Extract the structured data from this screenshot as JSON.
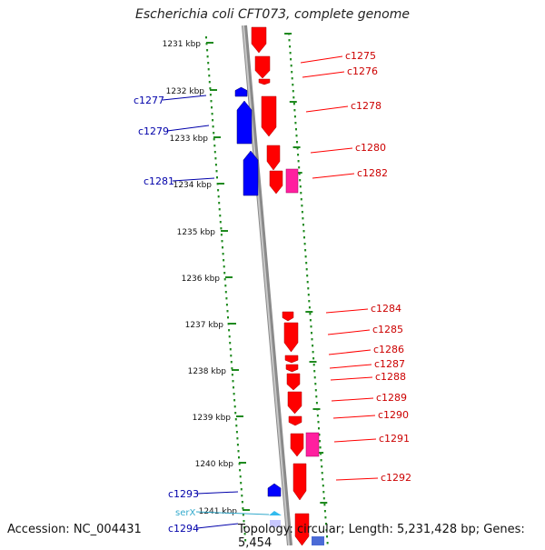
{
  "title": "Escherichia coli CFT073, complete genome",
  "accession": "Accession: NC_004431",
  "summary": "Topology: circular; Length: 5,231,428 bp; Genes: 5,454",
  "colors": {
    "backbone": "#8a8a8a",
    "dots": "#1f8a1f",
    "forward_gene": "#ff0000",
    "reverse_gene": "#0000ff",
    "pseudo_gene": "#ff1f9f",
    "trna": "#33bbee",
    "label_forward": "#cc0000",
    "label_reverse": "#0000aa",
    "label_trna": "#33aacc"
  },
  "ticks": [
    "1231 kbp",
    "1232 kbp",
    "1233 kbp",
    "1234 kbp",
    "1235 kbp",
    "1236 kbp",
    "1237 kbp",
    "1238 kbp",
    "1239 kbp",
    "1240 kbp",
    "1241 kbp"
  ],
  "forward_genes": [
    "c1275",
    "c1276",
    "c1278",
    "c1280",
    "c1282",
    "c1284",
    "c1285",
    "c1286",
    "c1287",
    "c1288",
    "c1289",
    "c1290",
    "c1291",
    "c1292"
  ],
  "reverse_genes": [
    "c1277",
    "c1279",
    "c1281",
    "c1293",
    "c1294"
  ],
  "trna_genes": [
    "serX"
  ]
}
